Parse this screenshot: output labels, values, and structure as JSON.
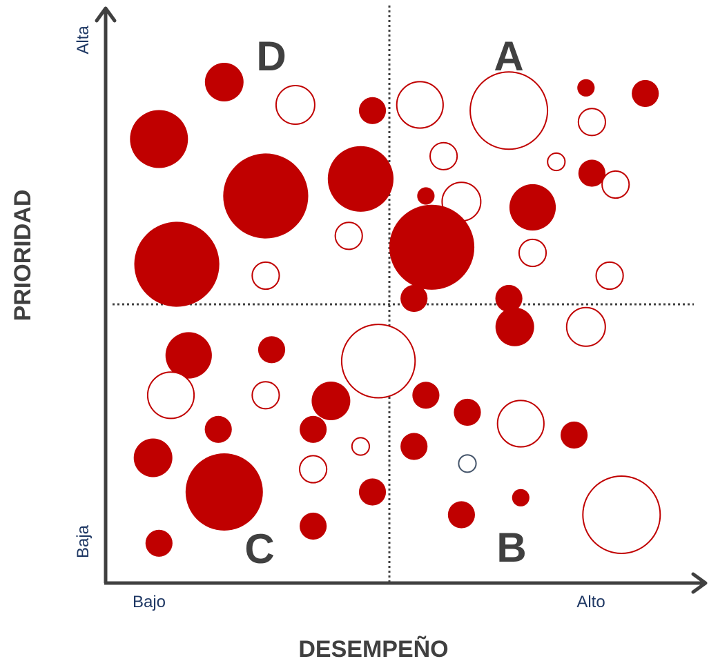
{
  "chart_data": {
    "type": "scatter",
    "subtype": "bubble-matrix",
    "xlabel": "DESEMPEÑO",
    "ylabel": "PRIORIDAD",
    "x_tick_labels": {
      "low": "Bajo",
      "high": "Alto"
    },
    "y_tick_labels": {
      "low": "Baja",
      "high": "Alta"
    },
    "quadrants": [
      {
        "name": "A",
        "position": "top-right"
      },
      {
        "name": "B",
        "position": "bottom-right"
      },
      {
        "name": "C",
        "position": "bottom-left"
      },
      {
        "name": "D",
        "position": "top-left"
      }
    ],
    "grid": false,
    "colors": {
      "filled": "#c00000",
      "outline": "#c00000",
      "neutral_outline": "#44546a",
      "axis": "#404040",
      "tick_text": "#1f3864"
    },
    "bubbles": [
      {
        "x": 0.2,
        "y": 0.88,
        "size": 1.0,
        "style": "filled"
      },
      {
        "x": 0.32,
        "y": 0.84,
        "size": 1.0,
        "style": "outline"
      },
      {
        "x": 0.45,
        "y": 0.83,
        "size": 0.7,
        "style": "filled"
      },
      {
        "x": 0.09,
        "y": 0.78,
        "size": 1.5,
        "style": "filled"
      },
      {
        "x": 0.43,
        "y": 0.71,
        "size": 1.7,
        "style": "filled"
      },
      {
        "x": 0.27,
        "y": 0.68,
        "size": 2.2,
        "style": "filled"
      },
      {
        "x": 0.41,
        "y": 0.61,
        "size": 0.7,
        "style": "outline"
      },
      {
        "x": 0.12,
        "y": 0.56,
        "size": 2.2,
        "style": "filled"
      },
      {
        "x": 0.27,
        "y": 0.54,
        "size": 0.7,
        "style": "outline"
      },
      {
        "x": 0.53,
        "y": 0.84,
        "size": 1.2,
        "style": "outline"
      },
      {
        "x": 0.68,
        "y": 0.83,
        "size": 2.0,
        "style": "outline"
      },
      {
        "x": 0.81,
        "y": 0.87,
        "size": 0.45,
        "style": "filled"
      },
      {
        "x": 0.91,
        "y": 0.86,
        "size": 0.7,
        "style": "filled"
      },
      {
        "x": 0.82,
        "y": 0.81,
        "size": 0.7,
        "style": "outline"
      },
      {
        "x": 0.57,
        "y": 0.75,
        "size": 0.7,
        "style": "outline"
      },
      {
        "x": 0.76,
        "y": 0.74,
        "size": 0.45,
        "style": "outline"
      },
      {
        "x": 0.82,
        "y": 0.72,
        "size": 0.7,
        "style": "filled"
      },
      {
        "x": 0.86,
        "y": 0.7,
        "size": 0.7,
        "style": "outline"
      },
      {
        "x": 0.54,
        "y": 0.68,
        "size": 0.45,
        "style": "filled"
      },
      {
        "x": 0.6,
        "y": 0.67,
        "size": 1.0,
        "style": "outline"
      },
      {
        "x": 0.72,
        "y": 0.66,
        "size": 1.2,
        "style": "filled"
      },
      {
        "x": 0.55,
        "y": 0.59,
        "size": 2.2,
        "style": "filled"
      },
      {
        "x": 0.72,
        "y": 0.58,
        "size": 0.7,
        "style": "outline"
      },
      {
        "x": 0.85,
        "y": 0.54,
        "size": 0.7,
        "style": "outline"
      },
      {
        "x": 0.68,
        "y": 0.5,
        "size": 0.7,
        "style": "filled"
      },
      {
        "x": 0.14,
        "y": 0.4,
        "size": 1.2,
        "style": "filled"
      },
      {
        "x": 0.28,
        "y": 0.41,
        "size": 0.7,
        "style": "filled"
      },
      {
        "x": 0.46,
        "y": 0.39,
        "size": 1.9,
        "style": "outline"
      },
      {
        "x": 0.11,
        "y": 0.33,
        "size": 1.2,
        "style": "outline"
      },
      {
        "x": 0.27,
        "y": 0.33,
        "size": 0.7,
        "style": "outline"
      },
      {
        "x": 0.38,
        "y": 0.32,
        "size": 1.0,
        "style": "filled"
      },
      {
        "x": 0.19,
        "y": 0.27,
        "size": 0.7,
        "style": "filled"
      },
      {
        "x": 0.35,
        "y": 0.27,
        "size": 0.7,
        "style": "filled"
      },
      {
        "x": 0.43,
        "y": 0.24,
        "size": 0.45,
        "style": "outline"
      },
      {
        "x": 0.08,
        "y": 0.22,
        "size": 1.0,
        "style": "filled"
      },
      {
        "x": 0.35,
        "y": 0.2,
        "size": 0.7,
        "style": "outline"
      },
      {
        "x": 0.2,
        "y": 0.16,
        "size": 2.0,
        "style": "filled"
      },
      {
        "x": 0.45,
        "y": 0.16,
        "size": 0.7,
        "style": "filled"
      },
      {
        "x": 0.35,
        "y": 0.1,
        "size": 0.7,
        "style": "filled"
      },
      {
        "x": 0.09,
        "y": 0.07,
        "size": 0.7,
        "style": "filled"
      },
      {
        "x": 0.52,
        "y": 0.5,
        "size": 0.7,
        "style": "filled"
      },
      {
        "x": 0.69,
        "y": 0.45,
        "size": 1.0,
        "style": "filled"
      },
      {
        "x": 0.81,
        "y": 0.45,
        "size": 1.0,
        "style": "outline"
      },
      {
        "x": 0.54,
        "y": 0.33,
        "size": 0.7,
        "style": "filled"
      },
      {
        "x": 0.61,
        "y": 0.3,
        "size": 0.7,
        "style": "filled"
      },
      {
        "x": 0.7,
        "y": 0.28,
        "size": 1.2,
        "style": "outline"
      },
      {
        "x": 0.79,
        "y": 0.26,
        "size": 0.7,
        "style": "filled"
      },
      {
        "x": 0.52,
        "y": 0.24,
        "size": 0.7,
        "style": "filled"
      },
      {
        "x": 0.61,
        "y": 0.21,
        "size": 0.45,
        "style": "neutral"
      },
      {
        "x": 0.7,
        "y": 0.15,
        "size": 0.45,
        "style": "filled"
      },
      {
        "x": 0.6,
        "y": 0.12,
        "size": 0.7,
        "style": "filled"
      },
      {
        "x": 0.87,
        "y": 0.12,
        "size": 2.0,
        "style": "outline"
      }
    ]
  }
}
